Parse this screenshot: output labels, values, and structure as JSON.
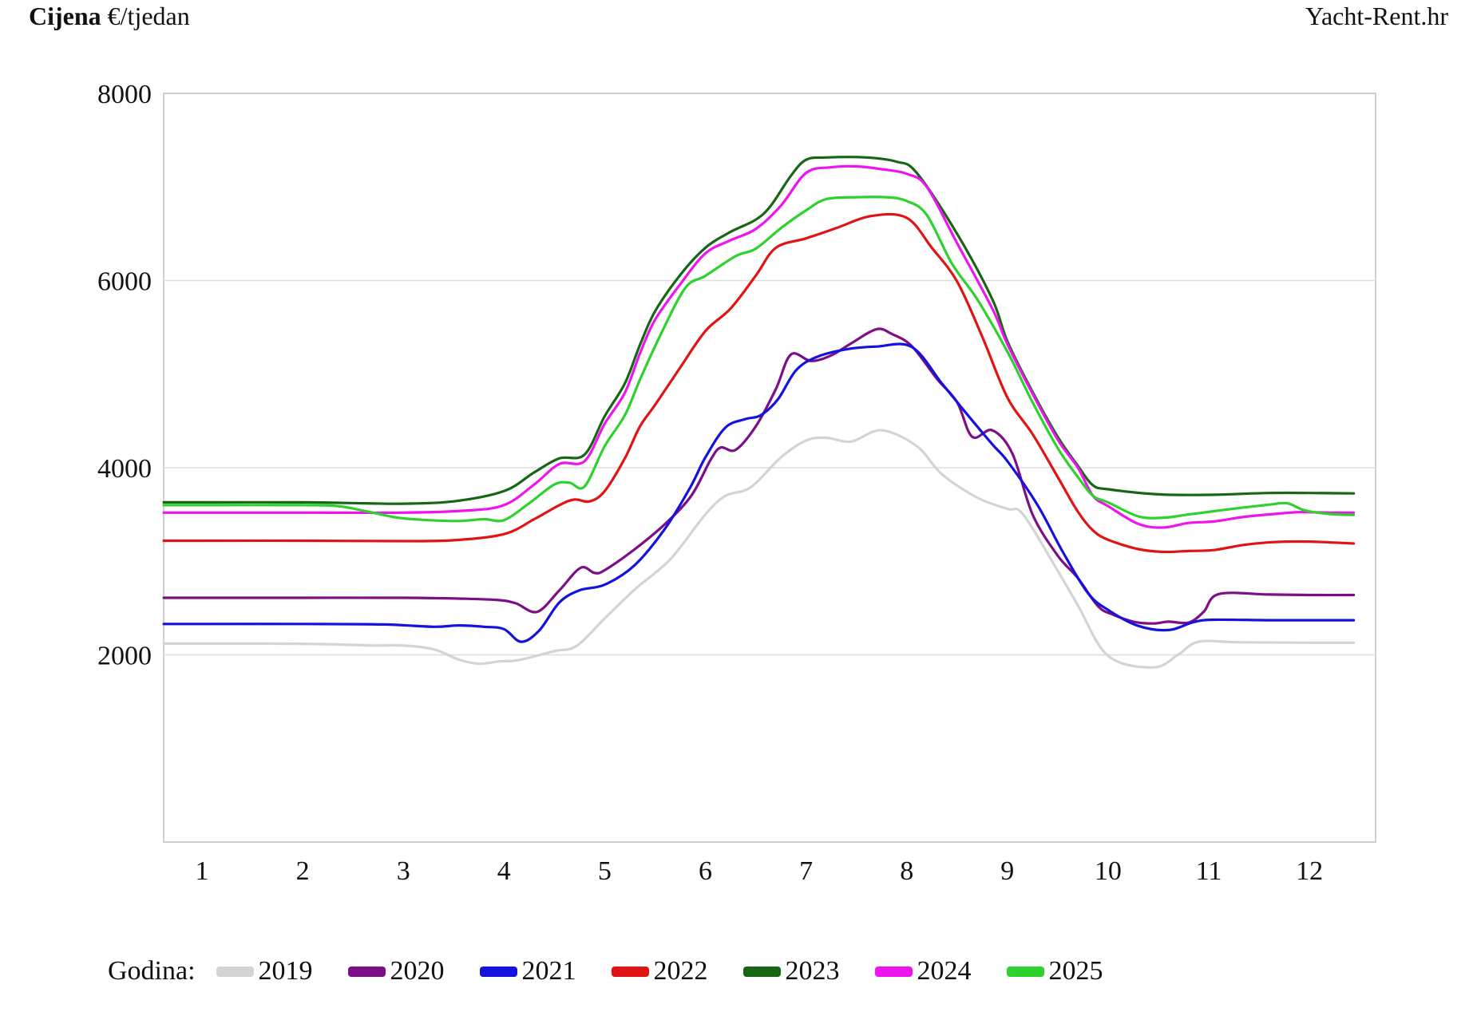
{
  "header": {
    "title_bold": "Cijena",
    "title_unit": "€/tjedan",
    "brand": "Yacht-Rent.hr"
  },
  "chart_data": {
    "type": "line",
    "title": "Cijena €/tjedan",
    "xlabel": "",
    "ylabel": "Cijena €/tjedan",
    "x_ticks": [
      1,
      2,
      3,
      4,
      5,
      6,
      7,
      8,
      9,
      10,
      11,
      12
    ],
    "y_ticks": [
      8000,
      6000,
      4000,
      2000
    ],
    "ylim": [
      0,
      8000
    ],
    "xlim": [
      0.62,
      12.44
    ],
    "grid": "horizontal",
    "legend_position": "bottom",
    "legend_label": "Godina:",
    "series": [
      {
        "name": "2019",
        "color": "#d4d4d4",
        "points": [
          [
            0.62,
            2120
          ],
          [
            1,
            2120
          ],
          [
            1.6,
            2120
          ],
          [
            2.2,
            2115
          ],
          [
            2.7,
            2100
          ],
          [
            3,
            2100
          ],
          [
            3.3,
            2060
          ],
          [
            3.55,
            1950
          ],
          [
            3.75,
            1905
          ],
          [
            3.95,
            1930
          ],
          [
            4.15,
            1945
          ],
          [
            4.5,
            2040
          ],
          [
            4.72,
            2095
          ],
          [
            5,
            2390
          ],
          [
            5.3,
            2700
          ],
          [
            5.65,
            3020
          ],
          [
            6,
            3500
          ],
          [
            6.2,
            3700
          ],
          [
            6.45,
            3790
          ],
          [
            6.75,
            4110
          ],
          [
            7,
            4290
          ],
          [
            7.2,
            4320
          ],
          [
            7.45,
            4280
          ],
          [
            7.75,
            4400
          ],
          [
            8.1,
            4230
          ],
          [
            8.35,
            3930
          ],
          [
            8.7,
            3680
          ],
          [
            9,
            3560
          ],
          [
            9.15,
            3510
          ],
          [
            9.45,
            2990
          ],
          [
            9.7,
            2530
          ],
          [
            10,
            1990
          ],
          [
            10.45,
            1865
          ],
          [
            10.7,
            2005
          ],
          [
            10.9,
            2140
          ],
          [
            11.3,
            2135
          ],
          [
            12,
            2130
          ],
          [
            12.44,
            2130
          ]
        ]
      },
      {
        "name": "2020",
        "color": "#7c0f87",
        "points": [
          [
            0.62,
            2610
          ],
          [
            1,
            2610
          ],
          [
            2,
            2610
          ],
          [
            3,
            2610
          ],
          [
            3.6,
            2600
          ],
          [
            3.95,
            2585
          ],
          [
            4.12,
            2550
          ],
          [
            4.33,
            2460
          ],
          [
            4.55,
            2690
          ],
          [
            4.76,
            2930
          ],
          [
            4.9,
            2875
          ],
          [
            5,
            2905
          ],
          [
            5.3,
            3130
          ],
          [
            5.6,
            3400
          ],
          [
            5.86,
            3700
          ],
          [
            6.05,
            4080
          ],
          [
            6.15,
            4215
          ],
          [
            6.3,
            4190
          ],
          [
            6.5,
            4440
          ],
          [
            6.7,
            4840
          ],
          [
            6.85,
            5210
          ],
          [
            7.05,
            5140
          ],
          [
            7.25,
            5200
          ],
          [
            7.45,
            5330
          ],
          [
            7.7,
            5480
          ],
          [
            7.85,
            5430
          ],
          [
            8.05,
            5300
          ],
          [
            8.3,
            4950
          ],
          [
            8.5,
            4700
          ],
          [
            8.65,
            4330
          ],
          [
            8.85,
            4400
          ],
          [
            9.05,
            4150
          ],
          [
            9.25,
            3500
          ],
          [
            9.5,
            3060
          ],
          [
            9.7,
            2820
          ],
          [
            9.9,
            2520
          ],
          [
            10.05,
            2430
          ],
          [
            10.25,
            2355
          ],
          [
            10.45,
            2335
          ],
          [
            10.6,
            2355
          ],
          [
            10.8,
            2345
          ],
          [
            10.95,
            2460
          ],
          [
            11.1,
            2650
          ],
          [
            11.6,
            2645
          ],
          [
            12,
            2640
          ],
          [
            12.44,
            2640
          ]
        ]
      },
      {
        "name": "2021",
        "color": "#1512dd",
        "points": [
          [
            0.62,
            2330
          ],
          [
            1,
            2330
          ],
          [
            2,
            2330
          ],
          [
            2.8,
            2325
          ],
          [
            3.3,
            2300
          ],
          [
            3.55,
            2315
          ],
          [
            3.8,
            2300
          ],
          [
            4,
            2275
          ],
          [
            4.17,
            2140
          ],
          [
            4.35,
            2260
          ],
          [
            4.55,
            2560
          ],
          [
            4.75,
            2690
          ],
          [
            5,
            2750
          ],
          [
            5.3,
            2960
          ],
          [
            5.6,
            3350
          ],
          [
            5.85,
            3790
          ],
          [
            6,
            4110
          ],
          [
            6.2,
            4430
          ],
          [
            6.4,
            4520
          ],
          [
            6.55,
            4560
          ],
          [
            6.72,
            4730
          ],
          [
            6.9,
            5040
          ],
          [
            7.1,
            5180
          ],
          [
            7.4,
            5265
          ],
          [
            7.7,
            5295
          ],
          [
            8.05,
            5290
          ],
          [
            8.35,
            4900
          ],
          [
            8.6,
            4570
          ],
          [
            8.85,
            4250
          ],
          [
            9,
            4070
          ],
          [
            9.3,
            3600
          ],
          [
            9.55,
            3100
          ],
          [
            9.8,
            2660
          ],
          [
            10,
            2480
          ],
          [
            10.3,
            2310
          ],
          [
            10.6,
            2265
          ],
          [
            10.85,
            2350
          ],
          [
            11.05,
            2375
          ],
          [
            11.6,
            2370
          ],
          [
            12,
            2370
          ],
          [
            12.44,
            2370
          ]
        ]
      },
      {
        "name": "2022",
        "color": "#e01414",
        "points": [
          [
            0.62,
            3220
          ],
          [
            1,
            3220
          ],
          [
            2,
            3220
          ],
          [
            3,
            3215
          ],
          [
            3.5,
            3225
          ],
          [
            4,
            3290
          ],
          [
            4.3,
            3450
          ],
          [
            4.55,
            3600
          ],
          [
            4.7,
            3660
          ],
          [
            4.85,
            3640
          ],
          [
            5,
            3750
          ],
          [
            5.2,
            4100
          ],
          [
            5.35,
            4440
          ],
          [
            5.5,
            4670
          ],
          [
            5.75,
            5070
          ],
          [
            6,
            5460
          ],
          [
            6.25,
            5700
          ],
          [
            6.5,
            6050
          ],
          [
            6.7,
            6350
          ],
          [
            7,
            6450
          ],
          [
            7.3,
            6560
          ],
          [
            7.65,
            6690
          ],
          [
            8,
            6670
          ],
          [
            8.25,
            6350
          ],
          [
            8.5,
            5990
          ],
          [
            8.75,
            5400
          ],
          [
            9,
            4750
          ],
          [
            9.25,
            4360
          ],
          [
            9.5,
            3900
          ],
          [
            9.7,
            3530
          ],
          [
            9.85,
            3330
          ],
          [
            10,
            3230
          ],
          [
            10.3,
            3130
          ],
          [
            10.55,
            3100
          ],
          [
            10.8,
            3110
          ],
          [
            11.05,
            3120
          ],
          [
            11.35,
            3175
          ],
          [
            11.65,
            3205
          ],
          [
            12,
            3210
          ],
          [
            12.44,
            3190
          ]
        ]
      },
      {
        "name": "2023",
        "color": "#166616",
        "points": [
          [
            0.62,
            3630
          ],
          [
            1,
            3630
          ],
          [
            2,
            3630
          ],
          [
            2.6,
            3620
          ],
          [
            3,
            3615
          ],
          [
            3.5,
            3640
          ],
          [
            4,
            3750
          ],
          [
            4.3,
            3950
          ],
          [
            4.55,
            4100
          ],
          [
            4.8,
            4140
          ],
          [
            5,
            4550
          ],
          [
            5.2,
            4900
          ],
          [
            5.35,
            5310
          ],
          [
            5.5,
            5670
          ],
          [
            5.75,
            6060
          ],
          [
            6,
            6350
          ],
          [
            6.25,
            6520
          ],
          [
            6.5,
            6650
          ],
          [
            6.65,
            6800
          ],
          [
            6.85,
            7120
          ],
          [
            7,
            7290
          ],
          [
            7.2,
            7315
          ],
          [
            7.6,
            7315
          ],
          [
            7.9,
            7270
          ],
          [
            8.1,
            7150
          ],
          [
            8.5,
            6500
          ],
          [
            8.85,
            5800
          ],
          [
            9,
            5350
          ],
          [
            9.25,
            4810
          ],
          [
            9.5,
            4330
          ],
          [
            9.7,
            4020
          ],
          [
            9.85,
            3812
          ],
          [
            10,
            3770
          ],
          [
            10.5,
            3715
          ],
          [
            11,
            3710
          ],
          [
            11.6,
            3730
          ],
          [
            12,
            3730
          ],
          [
            12.44,
            3725
          ]
        ]
      },
      {
        "name": "2024",
        "color": "#ee14ee",
        "points": [
          [
            0.62,
            3520
          ],
          [
            1,
            3520
          ],
          [
            2,
            3520
          ],
          [
            3,
            3520
          ],
          [
            3.6,
            3540
          ],
          [
            4,
            3600
          ],
          [
            4.3,
            3820
          ],
          [
            4.55,
            4040
          ],
          [
            4.8,
            4070
          ],
          [
            5,
            4470
          ],
          [
            5.2,
            4800
          ],
          [
            5.35,
            5220
          ],
          [
            5.5,
            5580
          ],
          [
            5.75,
            5960
          ],
          [
            6,
            6290
          ],
          [
            6.25,
            6430
          ],
          [
            6.5,
            6550
          ],
          [
            6.75,
            6800
          ],
          [
            7,
            7150
          ],
          [
            7.25,
            7210
          ],
          [
            7.5,
            7220
          ],
          [
            7.75,
            7190
          ],
          [
            8,
            7140
          ],
          [
            8.2,
            7000
          ],
          [
            8.5,
            6400
          ],
          [
            8.85,
            5700
          ],
          [
            9,
            5320
          ],
          [
            9.25,
            4790
          ],
          [
            9.5,
            4300
          ],
          [
            9.7,
            4000
          ],
          [
            9.85,
            3700
          ],
          [
            10,
            3590
          ],
          [
            10.3,
            3400
          ],
          [
            10.55,
            3360
          ],
          [
            10.8,
            3410
          ],
          [
            11.05,
            3425
          ],
          [
            11.35,
            3475
          ],
          [
            11.65,
            3505
          ],
          [
            11.9,
            3525
          ],
          [
            12.2,
            3520
          ],
          [
            12.44,
            3520
          ]
        ]
      },
      {
        "name": "2025",
        "color": "#2ed12e",
        "points": [
          [
            0.62,
            3600
          ],
          [
            1,
            3600
          ],
          [
            2,
            3600
          ],
          [
            2.35,
            3590
          ],
          [
            2.65,
            3530
          ],
          [
            2.95,
            3465
          ],
          [
            3.25,
            3440
          ],
          [
            3.55,
            3430
          ],
          [
            3.8,
            3450
          ],
          [
            4,
            3440
          ],
          [
            4.25,
            3620
          ],
          [
            4.5,
            3820
          ],
          [
            4.65,
            3840
          ],
          [
            4.8,
            3800
          ],
          [
            5,
            4230
          ],
          [
            5.2,
            4560
          ],
          [
            5.35,
            4940
          ],
          [
            5.55,
            5410
          ],
          [
            5.8,
            5920
          ],
          [
            6,
            6050
          ],
          [
            6.3,
            6260
          ],
          [
            6.5,
            6340
          ],
          [
            6.75,
            6560
          ],
          [
            7,
            6750
          ],
          [
            7.2,
            6870
          ],
          [
            7.5,
            6890
          ],
          [
            7.8,
            6890
          ],
          [
            8,
            6850
          ],
          [
            8.2,
            6700
          ],
          [
            8.45,
            6180
          ],
          [
            8.7,
            5800
          ],
          [
            9,
            5240
          ],
          [
            9.25,
            4700
          ],
          [
            9.5,
            4210
          ],
          [
            9.7,
            3900
          ],
          [
            9.85,
            3700
          ],
          [
            10,
            3630
          ],
          [
            10.3,
            3480
          ],
          [
            10.55,
            3465
          ],
          [
            10.8,
            3500
          ],
          [
            11.05,
            3535
          ],
          [
            11.35,
            3575
          ],
          [
            11.6,
            3605
          ],
          [
            11.78,
            3620
          ],
          [
            11.95,
            3545
          ],
          [
            12.2,
            3505
          ],
          [
            12.44,
            3495
          ]
        ]
      }
    ]
  }
}
